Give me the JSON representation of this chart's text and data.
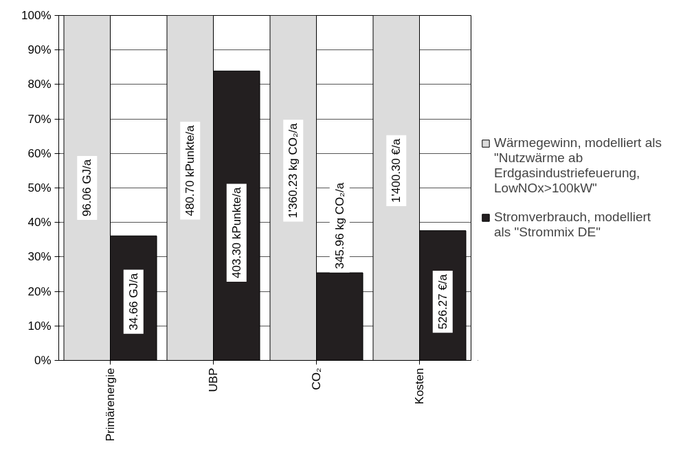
{
  "chart_data": {
    "type": "bar",
    "categories": [
      "Primärenergie",
      "UBP",
      "CO₂",
      "Kosten"
    ],
    "series": [
      {
        "name": "Wärmegewinn, modelliert als \"Nutzwärme ab Erdgasindustriefeuerung, LowNOx>100kW\"",
        "color": "#dcdcdc",
        "values": [
          100,
          100,
          100,
          100
        ]
      },
      {
        "name": "Stromverbrauch, modelliert als \"Strommix DE\"",
        "color": "#231f20",
        "values": [
          36.1,
          83.9,
          25.4,
          37.6
        ]
      }
    ],
    "annotations": [
      {
        "text": "96.06 GJ/a",
        "x": "Primärenergie",
        "y": 50
      },
      {
        "text": "34.66 GJ/a",
        "x": "Primärenergie",
        "y": 17
      },
      {
        "text": "480.70 kPunkte/a",
        "x": "UBP",
        "y": 55
      },
      {
        "text": "403.30 kPunkte/a",
        "x": "UBP",
        "y": 37
      },
      {
        "text": "1'360.23 kg CO₂/a",
        "x": "CO₂",
        "y": 55
      },
      {
        "text": "345.96 kg CO₂/a",
        "x": "CO₂",
        "y": 39
      },
      {
        "text": "1'400.30 €/a",
        "x": "Kosten",
        "y": 55
      },
      {
        "text": "526.27 €/a",
        "x": "Kosten",
        "y": 17
      }
    ],
    "ylim": [
      0,
      100
    ],
    "yticks": [
      {
        "value": 0,
        "label": "0%"
      },
      {
        "value": 10,
        "label": "10%"
      },
      {
        "value": 20,
        "label": "20%"
      },
      {
        "value": 30,
        "label": "30%"
      },
      {
        "value": 40,
        "label": "40%"
      },
      {
        "value": 50,
        "label": "50%"
      },
      {
        "value": 60,
        "label": "60%"
      },
      {
        "value": 70,
        "label": "70%"
      },
      {
        "value": 80,
        "label": "80%"
      },
      {
        "value": 90,
        "label": "90%"
      },
      {
        "value": 100,
        "label": "100%"
      }
    ],
    "grid": "y",
    "legend": "right"
  }
}
